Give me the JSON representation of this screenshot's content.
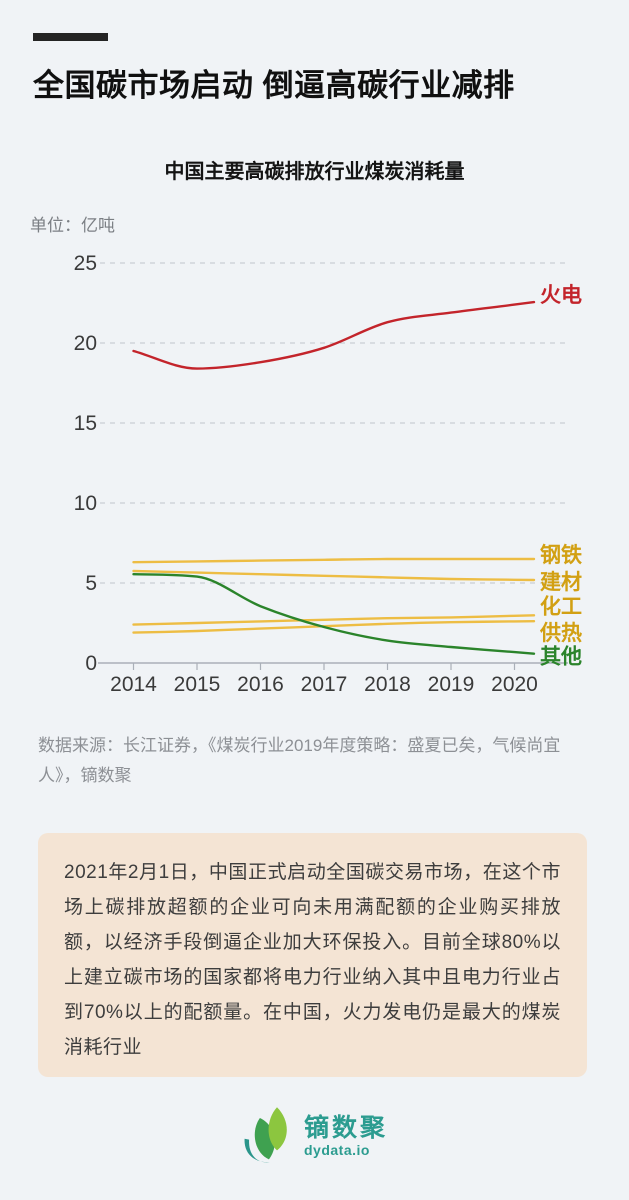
{
  "header": {
    "title": "全国碳市场启动 倒逼高碳行业减排"
  },
  "chart": {
    "unit_label": "单位：亿吨"
  },
  "chart_data": {
    "type": "line",
    "title": "中国主要高碳排放行业煤炭消耗量",
    "unit": "亿吨",
    "categories": [
      "2014",
      "2015",
      "2016",
      "2017",
      "2018",
      "2019",
      "2020"
    ],
    "series": [
      {
        "name": "火电",
        "slug": "thermal-power",
        "color": "#C3242B",
        "label_color": "#C3242B",
        "values": [
          19.5,
          18.4,
          18.8,
          19.7,
          21.3,
          21.9,
          22.4
        ],
        "label_dy": -7
      },
      {
        "name": "钢铁",
        "slug": "steel",
        "color": "#EDBD44",
        "label_color": "#D2A013",
        "values": [
          6.3,
          6.35,
          6.4,
          6.45,
          6.5,
          6.5,
          6.5
        ],
        "label_dy": -4
      },
      {
        "name": "建材",
        "slug": "building-materials",
        "color": "#EDBD44",
        "label_color": "#D2A013",
        "values": [
          5.75,
          5.65,
          5.55,
          5.45,
          5.35,
          5.25,
          5.2
        ],
        "label_dy": 2
      },
      {
        "name": "化工",
        "slug": "chemical",
        "color": "#EDBD44",
        "label_color": "#D2A013",
        "values": [
          2.4,
          2.5,
          2.6,
          2.7,
          2.8,
          2.85,
          2.95
        ],
        "label_dy": -9
      },
      {
        "name": "供热",
        "slug": "heating",
        "color": "#EDBD44",
        "label_color": "#D2A013",
        "values": [
          1.9,
          2.0,
          2.15,
          2.3,
          2.45,
          2.55,
          2.6
        ],
        "label_dy": 12
      },
      {
        "name": "其他",
        "slug": "other",
        "color": "#2B842B",
        "label_color": "#2B842B",
        "values": [
          5.55,
          5.4,
          3.55,
          2.25,
          1.4,
          1.0,
          0.68
        ],
        "label_dy": 3
      }
    ],
    "ylim": [
      0,
      25
    ],
    "yticks": [
      0,
      5,
      10,
      15,
      20,
      25
    ],
    "grid": "dashed horizontal gridlines, solid baseline",
    "legend_position": "labels at right end of each line"
  },
  "source": {
    "text": "数据来源：长江证券，《煤炭行业2019年度策略：盛夏已矣，气候尚宜人》，镝数聚"
  },
  "note_box": {
    "text": "2021年2月1日，中国正式启动全国碳交易市场，在这个市场上碳排放超额的企业可向未用满配额的企业购买排放额，以经济手段倒逼企业加大环保投入。目前全球80%以上建立碳市场的国家都将电力行业纳入其中且电力行业占到70%以上的配额量。在中国，火力发电仍是最大的煤炭消耗行业"
  },
  "footer": {
    "brand_name": "镝数聚",
    "brand_domain": "dydata.io"
  },
  "palette": {
    "page_bg": "#F0F3F6",
    "accent_bar": "#242424",
    "note_bg": "#F4E4D4",
    "brand_teal": "#2C9C90",
    "leaf_light_green": "#8CC63F",
    "leaf_dark_green": "#3FA150",
    "leaf_teal": "#2A958B",
    "grid_color": "#C0C6CC",
    "axis_color": "#AAB0B8",
    "axis_text": "#3A3A3A"
  }
}
